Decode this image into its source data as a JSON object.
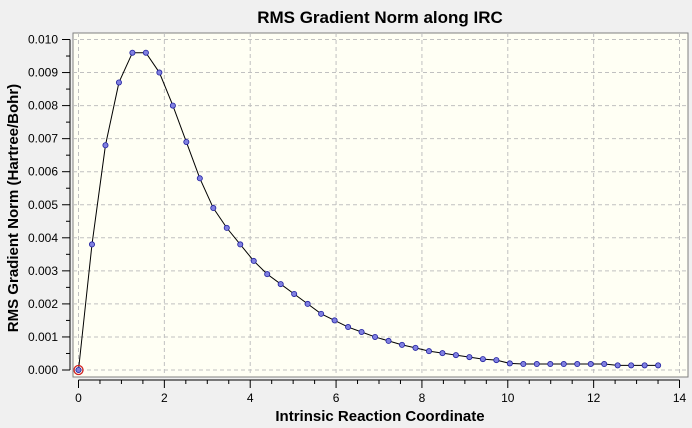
{
  "chart_data": {
    "type": "line",
    "title": "RMS Gradient Norm along IRC",
    "xlabel": "Intrinsic Reaction Coordinate",
    "ylabel": "RMS Gradient Norm (Hartree/Bohr)",
    "xlim": [
      0,
      14
    ],
    "ylim": [
      0,
      0.01
    ],
    "xticks": [
      "0",
      "2",
      "4",
      "6",
      "8",
      "10",
      "12",
      "14"
    ],
    "yticks": [
      "0.000",
      "0.001",
      "0.002",
      "0.003",
      "0.004",
      "0.005",
      "0.006",
      "0.007",
      "0.008",
      "0.009",
      "0.010"
    ],
    "grid": true,
    "x_step": 0.314,
    "values": [
      0.0,
      0.0038,
      0.0068,
      0.0087,
      0.0096,
      0.0096,
      0.009,
      0.008,
      0.0069,
      0.0058,
      0.0049,
      0.0043,
      0.0038,
      0.0033,
      0.0029,
      0.0026,
      0.0023,
      0.002,
      0.0017,
      0.0015,
      0.0013,
      0.00115,
      0.001,
      0.00088,
      0.00076,
      0.00067,
      0.00057,
      0.00051,
      0.00045,
      0.00039,
      0.00033,
      0.0003,
      0.0002,
      0.00018,
      0.00018,
      0.00018,
      0.00018,
      0.00018,
      0.00018,
      0.00018,
      0.00014,
      0.00014,
      0.00014,
      0.00014
    ],
    "highlighted_point_index": 0,
    "colors": {
      "line": "#000000",
      "marker_fill": "#8080e0",
      "marker_stroke": "#2020a0",
      "highlight": "#d02020",
      "plot_bg": "#fffff4",
      "grid": "#c0c0c0"
    }
  }
}
